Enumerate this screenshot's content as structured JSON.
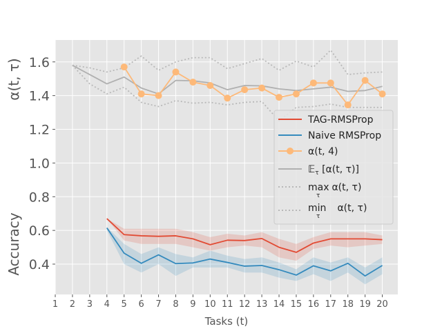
{
  "chart_data": {
    "type": "line",
    "xlabel": "Tasks (t)",
    "ylabel_top": "α(t, τ)",
    "ylabel_bottom": "Accuracy",
    "xlim": [
      1,
      20.9
    ],
    "ylim": [
      0.22,
      1.73
    ],
    "x_ticks": [
      1,
      2,
      3,
      4,
      5,
      6,
      7,
      8,
      9,
      10,
      11,
      12,
      13,
      14,
      15,
      16,
      17,
      18,
      19,
      20
    ],
    "y_ticks": [
      0.4,
      0.6,
      0.8,
      1.0,
      1.2,
      1.4,
      1.6
    ],
    "y_tick_labels": [
      "0.4",
      "0.6",
      "0.8",
      "1.0",
      "1.2",
      "1.4",
      "1.6"
    ],
    "grid": true,
    "legend_position": "center-right",
    "series": [
      {
        "name": "TAG-RMSProp",
        "color": "#e24a33",
        "style": "solid",
        "x": [
          4,
          5,
          6,
          7,
          8,
          9,
          10,
          11,
          12,
          13,
          14,
          15,
          16,
          17,
          18,
          19,
          20
        ],
        "values": [
          0.67,
          0.575,
          0.568,
          0.565,
          0.568,
          0.55,
          0.515,
          0.542,
          0.54,
          0.552,
          0.5,
          0.47,
          0.525,
          0.55,
          0.55,
          0.55,
          0.545
        ],
        "band_lower": [
          0.67,
          0.54,
          0.52,
          0.52,
          0.52,
          0.5,
          0.48,
          0.5,
          0.51,
          0.5,
          0.44,
          0.42,
          0.49,
          0.51,
          0.5,
          0.51,
          0.52
        ],
        "band_upper": [
          0.67,
          0.61,
          0.61,
          0.61,
          0.61,
          0.59,
          0.56,
          0.58,
          0.57,
          0.59,
          0.55,
          0.52,
          0.56,
          0.59,
          0.59,
          0.59,
          0.57
        ]
      },
      {
        "name": "Naive RMSProp",
        "color": "#348abd",
        "style": "solid",
        "x": [
          4,
          5,
          6,
          7,
          8,
          9,
          10,
          11,
          12,
          13,
          14,
          15,
          16,
          17,
          18,
          19,
          20
        ],
        "values": [
          0.615,
          0.465,
          0.405,
          0.455,
          0.403,
          0.407,
          0.43,
          0.41,
          0.388,
          0.392,
          0.367,
          0.335,
          0.39,
          0.36,
          0.405,
          0.33,
          0.392
        ],
        "band_lower": [
          0.6,
          0.4,
          0.35,
          0.4,
          0.33,
          0.38,
          0.38,
          0.38,
          0.35,
          0.35,
          0.32,
          0.3,
          0.34,
          0.3,
          0.35,
          0.28,
          0.34
        ],
        "band_upper": [
          0.62,
          0.52,
          0.46,
          0.5,
          0.46,
          0.44,
          0.48,
          0.45,
          0.43,
          0.44,
          0.41,
          0.37,
          0.44,
          0.41,
          0.44,
          0.38,
          0.44
        ]
      },
      {
        "name": "α(t, 4)",
        "color": "#fdb979",
        "style": "markers",
        "x": [
          5,
          6,
          7,
          8,
          9,
          10,
          11,
          12,
          13,
          14,
          15,
          16,
          17,
          18,
          19,
          20
        ],
        "values": [
          1.57,
          1.41,
          1.4,
          1.54,
          1.48,
          1.46,
          1.385,
          1.435,
          1.445,
          1.39,
          1.41,
          1.475,
          1.475,
          1.345,
          1.49,
          1.41
        ]
      },
      {
        "name": "𝔼τ  [α(t, τ)]",
        "legend_main": "𝔼",
        "legend_sub": "τ",
        "legend_rest": "  [α(t, τ)]",
        "color": "#b0b0b0",
        "style": "solid",
        "x": [
          2,
          4,
          5,
          6,
          7,
          8,
          9,
          10,
          11,
          12,
          13,
          14,
          15,
          16,
          17,
          18,
          19,
          20
        ],
        "values": [
          1.58,
          1.47,
          1.51,
          1.445,
          1.41,
          1.49,
          1.488,
          1.475,
          1.435,
          1.46,
          1.458,
          1.44,
          1.43,
          1.44,
          1.45,
          1.425,
          1.43,
          1.455
        ]
      },
      {
        "name": "max τ α(t, τ)",
        "legend_main": "max",
        "legend_sub": "τ",
        "legend_rest": "  α(t, τ)",
        "color": "#b8b8b8",
        "style": "dotted",
        "x": [
          2,
          3,
          4,
          5,
          6,
          7,
          8,
          9,
          10,
          11,
          12,
          13,
          14,
          15,
          16,
          17,
          18,
          19,
          20
        ],
        "values": [
          1.58,
          1.565,
          1.54,
          1.565,
          1.635,
          1.55,
          1.6,
          1.625,
          1.625,
          1.56,
          1.59,
          1.62,
          1.55,
          1.605,
          1.57,
          1.67,
          1.525,
          1.535,
          1.54
        ]
      },
      {
        "name": "min τ α(t, τ)",
        "legend_main": "min",
        "legend_sub": "τ",
        "legend_rest": "  α(t, τ)",
        "color": "#b8b8b8",
        "style": "dotted",
        "x": [
          2,
          3,
          4,
          5,
          6,
          7,
          8,
          9,
          10,
          11,
          12,
          13,
          14,
          15,
          16,
          17,
          18,
          19,
          20
        ],
        "values": [
          1.58,
          1.47,
          1.41,
          1.45,
          1.36,
          1.335,
          1.37,
          1.355,
          1.36,
          1.345,
          1.36,
          1.365,
          1.25,
          1.33,
          1.335,
          1.35,
          1.33,
          1.33,
          1.33
        ]
      }
    ]
  }
}
